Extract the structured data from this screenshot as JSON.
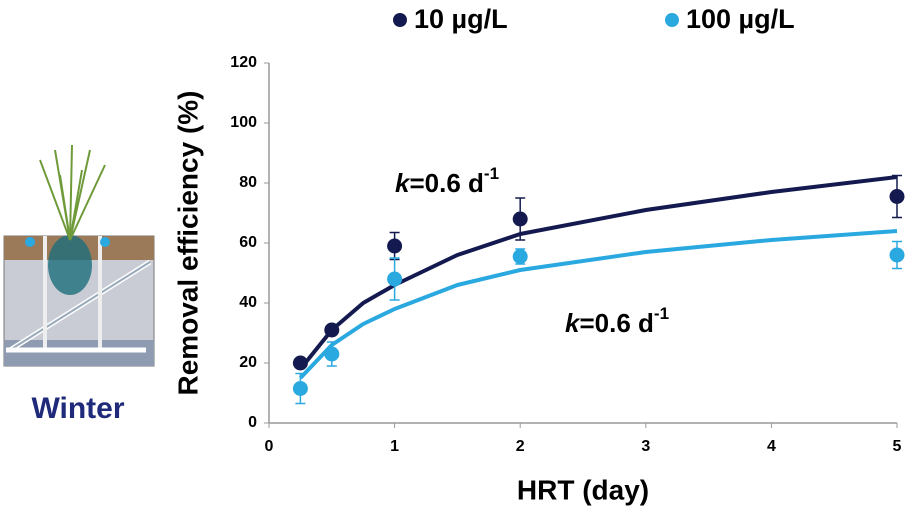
{
  "chart_data": {
    "type": "scatter",
    "xlabel": "HRT (day)",
    "ylabel": "Removal efficiency (%)",
    "xlim": [
      0,
      5
    ],
    "ylim": [
      0,
      120
    ],
    "xticks": [
      0,
      1,
      2,
      3,
      4,
      5
    ],
    "yticks": [
      0,
      20,
      40,
      60,
      80,
      100,
      120
    ],
    "grid": false,
    "legend": "top",
    "x": [
      0.25,
      0.5,
      1,
      2,
      5
    ],
    "series": [
      {
        "name": "10 µg/L",
        "color": "#141a4f",
        "values": [
          20,
          31,
          59,
          68,
          75.5
        ],
        "errors": [
          null,
          null,
          4.5,
          7,
          7
        ]
      },
      {
        "name": "100 µg/L",
        "color": "#2aa8e0",
        "values": [
          11.5,
          23,
          48,
          55.5,
          56
        ],
        "errors": [
          5,
          4,
          7,
          2.5,
          4.5
        ]
      }
    ],
    "curves": [
      {
        "color": "#141a4f",
        "x": [
          0.25,
          0.5,
          0.75,
          1,
          1.5,
          2,
          3,
          4,
          5
        ],
        "values": [
          18,
          31,
          40,
          46,
          56,
          63,
          71,
          77,
          82
        ]
      },
      {
        "color": "#2aa8e0",
        "x": [
          0.25,
          0.5,
          0.75,
          1,
          1.5,
          2,
          3,
          4,
          5
        ],
        "values": [
          15,
          26,
          33,
          38,
          46,
          51,
          57,
          61,
          64
        ]
      }
    ],
    "annotations": [
      {
        "symbol": "k",
        "text": "=0.6 d",
        "superscript": "-1"
      },
      {
        "symbol": "k",
        "text": "=0.6 d",
        "superscript": "-1"
      }
    ],
    "panel_label": "Winter"
  }
}
